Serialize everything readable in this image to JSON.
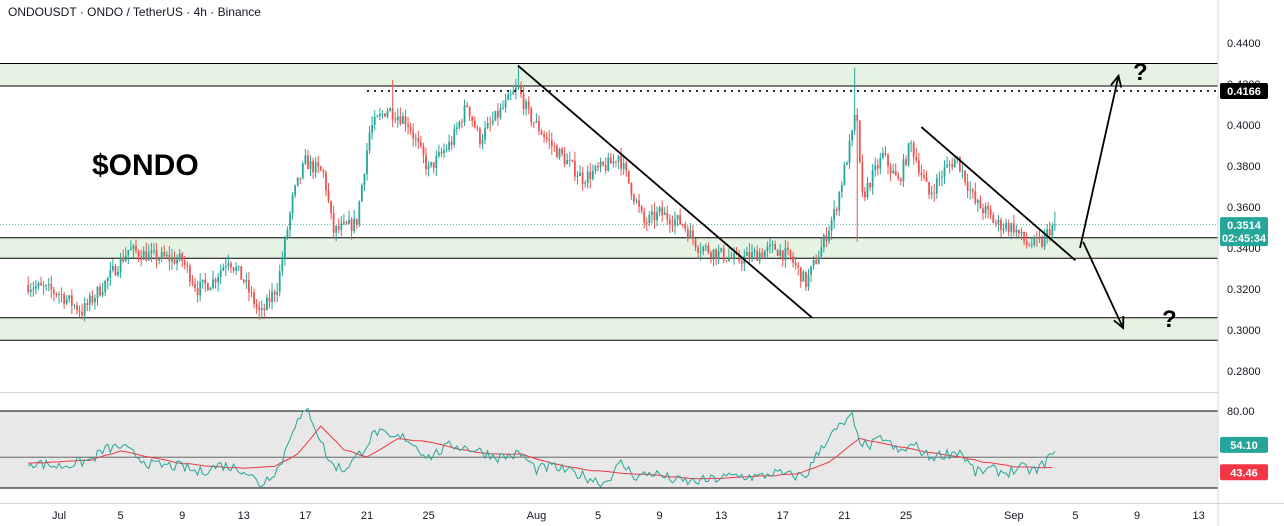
{
  "header": {
    "title": "ONDOUSDT · ONDO / TetherUS · 4h · Binance"
  },
  "annotations": {
    "ticker": "$ONDO",
    "question_up": "?",
    "question_down": "?"
  },
  "colors": {
    "up": "#26a69a",
    "down": "#ef5350",
    "zone_fill": "#e6f3e3",
    "rsi_band": "#e8e8e8",
    "rsi_line": "#26a69a",
    "rsi_ma": "#f23645",
    "price_badge": "#26a69a",
    "level_badge": "#000000"
  },
  "chart_data": [
    {
      "type": "candlestick",
      "title": "",
      "timeframe": "4h",
      "x_ticks": [
        {
          "label": "Jul",
          "day": 0
        },
        {
          "label": "5",
          "day": 4
        },
        {
          "label": "9",
          "day": 8
        },
        {
          "label": "13",
          "day": 12
        },
        {
          "label": "17",
          "day": 16
        },
        {
          "label": "21",
          "day": 20
        },
        {
          "label": "25",
          "day": 24
        },
        {
          "label": "Aug",
          "day": 31
        },
        {
          "label": "5",
          "day": 35
        },
        {
          "label": "9",
          "day": 39
        },
        {
          "label": "13",
          "day": 43
        },
        {
          "label": "17",
          "day": 47
        },
        {
          "label": "21",
          "day": 51
        },
        {
          "label": "25",
          "day": 55
        },
        {
          "label": "Sep",
          "day": 62
        },
        {
          "label": "5",
          "day": 66
        },
        {
          "label": "9",
          "day": 70
        },
        {
          "label": "13",
          "day": 74
        }
      ],
      "y_ticks": [
        "0.4400",
        "0.4200",
        "0.4000",
        "0.3800",
        "0.3600",
        "0.3400",
        "0.3200",
        "0.3000",
        "0.2800"
      ],
      "ylim": [
        0.27,
        0.456
      ],
      "path_points": [
        [
          -2,
          0.322
        ],
        [
          0,
          0.318
        ],
        [
          1.5,
          0.309
        ],
        [
          3,
          0.323
        ],
        [
          4.5,
          0.339
        ],
        [
          6,
          0.336
        ],
        [
          8,
          0.334
        ],
        [
          9,
          0.32
        ],
        [
          10,
          0.324
        ],
        [
          11,
          0.335
        ],
        [
          12,
          0.324
        ],
        [
          13.1,
          0.307
        ],
        [
          14.2,
          0.322
        ],
        [
          15.2,
          0.365
        ],
        [
          16,
          0.382
        ],
        [
          17.2,
          0.376
        ],
        [
          17.8,
          0.348
        ],
        [
          19.3,
          0.352
        ],
        [
          20.2,
          0.398
        ],
        [
          21.3,
          0.408
        ],
        [
          22.6,
          0.402
        ],
        [
          24,
          0.378
        ],
        [
          25.5,
          0.392
        ],
        [
          26.5,
          0.41
        ],
        [
          27.3,
          0.393
        ],
        [
          28.5,
          0.405
        ],
        [
          29.8,
          0.418
        ],
        [
          30.5,
          0.405
        ],
        [
          32,
          0.39
        ],
        [
          34,
          0.374
        ],
        [
          36,
          0.382
        ],
        [
          36.3,
          0.386
        ],
        [
          38,
          0.352
        ],
        [
          39,
          0.357
        ],
        [
          40.5,
          0.352
        ],
        [
          41.5,
          0.341
        ],
        [
          44,
          0.334
        ],
        [
          46.5,
          0.34
        ],
        [
          47.5,
          0.335
        ],
        [
          48.5,
          0.323
        ],
        [
          49.5,
          0.34
        ],
        [
          50.4,
          0.358
        ],
        [
          51.5,
          0.395
        ],
        [
          51.8,
          0.408
        ],
        [
          52.1,
          0.364
        ],
        [
          53.5,
          0.385
        ],
        [
          54.5,
          0.372
        ],
        [
          55.3,
          0.391
        ],
        [
          56.5,
          0.366
        ],
        [
          57.5,
          0.378
        ],
        [
          58.3,
          0.384
        ],
        [
          59.5,
          0.362
        ],
        [
          60.3,
          0.357
        ],
        [
          60.8,
          0.352
        ],
        [
          62,
          0.35
        ],
        [
          62.8,
          0.342
        ],
        [
          63.8,
          0.342
        ],
        [
          64.3,
          0.349
        ],
        [
          64.7,
          0.3514
        ]
      ],
      "wick_spikes": [
        {
          "day": 21.6,
          "high": 0.422
        },
        {
          "day": 29.8,
          "high": 0.429
        },
        {
          "day": 51.6,
          "high": 0.428
        },
        {
          "day": 51.75,
          "low": 0.343
        },
        {
          "day": 13.0,
          "low": 0.305
        }
      ],
      "support_resistance_zones": [
        {
          "low": 0.419,
          "high": 0.43
        },
        {
          "low": 0.335,
          "high": 0.345
        },
        {
          "low": 0.295,
          "high": 0.306
        }
      ],
      "dotted_level": {
        "value": 0.4166,
        "from_day": 20.0
      },
      "current_price": {
        "value": "0.3514",
        "countdown": "02:45:34"
      },
      "level_label": "0.4166",
      "trend_lines": [
        {
          "from": [
            29.8,
            0.429
          ],
          "to": [
            48.9,
            0.306
          ]
        },
        {
          "from": [
            56.0,
            0.399
          ],
          "to": [
            66.0,
            0.334
          ]
        }
      ],
      "scenario_arrows": [
        {
          "from": [
            66.3,
            0.34
          ],
          "to": [
            68.8,
            0.424
          ],
          "label": "?"
        },
        {
          "from": [
            66.5,
            0.343
          ],
          "to": [
            69.1,
            0.301
          ],
          "label": "?"
        }
      ]
    },
    {
      "type": "line",
      "indicator": "RSI",
      "y_ticks": [
        "80.00"
      ],
      "band": [
        30,
        70
      ],
      "ylim": [
        22,
        82
      ],
      "rsi_points": [
        [
          -2,
          47
        ],
        [
          0,
          44
        ],
        [
          2,
          48
        ],
        [
          3,
          55
        ],
        [
          4,
          57
        ],
        [
          6,
          45
        ],
        [
          8,
          44
        ],
        [
          9,
          40
        ],
        [
          10.5,
          45
        ],
        [
          12,
          42
        ],
        [
          13.1,
          32
        ],
        [
          14.4,
          45
        ],
        [
          15.2,
          70
        ],
        [
          16.2,
          80.5
        ],
        [
          17.6,
          46
        ],
        [
          18.5,
          42
        ],
        [
          19.5,
          52
        ],
        [
          20.6,
          67
        ],
        [
          21.5,
          62
        ],
        [
          22.5,
          63
        ],
        [
          24,
          50
        ],
        [
          25.5,
          58
        ],
        [
          27,
          55
        ],
        [
          28.5,
          50
        ],
        [
          30,
          52
        ],
        [
          31,
          42
        ],
        [
          32,
          44
        ],
        [
          34,
          38
        ],
        [
          35.4,
          33
        ],
        [
          36.5,
          46
        ],
        [
          37.5,
          37
        ],
        [
          38.5,
          40
        ],
        [
          40,
          35
        ],
        [
          41,
          34
        ],
        [
          42,
          35
        ],
        [
          44,
          38
        ],
        [
          45.5,
          37
        ],
        [
          46.3,
          40
        ],
        [
          47.5,
          38
        ],
        [
          48.5,
          38
        ],
        [
          49.5,
          57
        ],
        [
          50.5,
          68
        ],
        [
          51.5,
          76
        ],
        [
          51.8,
          64
        ],
        [
          52.5,
          56
        ],
        [
          53.5,
          63
        ],
        [
          54.5,
          53
        ],
        [
          55.5,
          58
        ],
        [
          56.5,
          50
        ],
        [
          57.5,
          52
        ],
        [
          58.5,
          54
        ],
        [
          59.5,
          40
        ],
        [
          60.5,
          42
        ],
        [
          61.5,
          40
        ],
        [
          62.5,
          43
        ],
        [
          63.5,
          41
        ],
        [
          64.3,
          50
        ],
        [
          64.7,
          54.1
        ]
      ],
      "ma_points": [
        [
          -2,
          46
        ],
        [
          2,
          48
        ],
        [
          4,
          54
        ],
        [
          6,
          50
        ],
        [
          8,
          46
        ],
        [
          10,
          44
        ],
        [
          12,
          43
        ],
        [
          14,
          44
        ],
        [
          15.5,
          52
        ],
        [
          17,
          70
        ],
        [
          18.5,
          55
        ],
        [
          20,
          50
        ],
        [
          22,
          62
        ],
        [
          24,
          60
        ],
        [
          26,
          55
        ],
        [
          28,
          52
        ],
        [
          30,
          52
        ],
        [
          32,
          46
        ],
        [
          34,
          42
        ],
        [
          36,
          40
        ],
        [
          38,
          39
        ],
        [
          40,
          37
        ],
        [
          42,
          36
        ],
        [
          44,
          37
        ],
        [
          46,
          38
        ],
        [
          48,
          39
        ],
        [
          50,
          47
        ],
        [
          52,
          62
        ],
        [
          54,
          58
        ],
        [
          56,
          54
        ],
        [
          58,
          51
        ],
        [
          60,
          47
        ],
        [
          62,
          44
        ],
        [
          64,
          43
        ],
        [
          64.7,
          43.46
        ]
      ],
      "current_rsi": "54.10",
      "current_ma": "43.46"
    }
  ]
}
